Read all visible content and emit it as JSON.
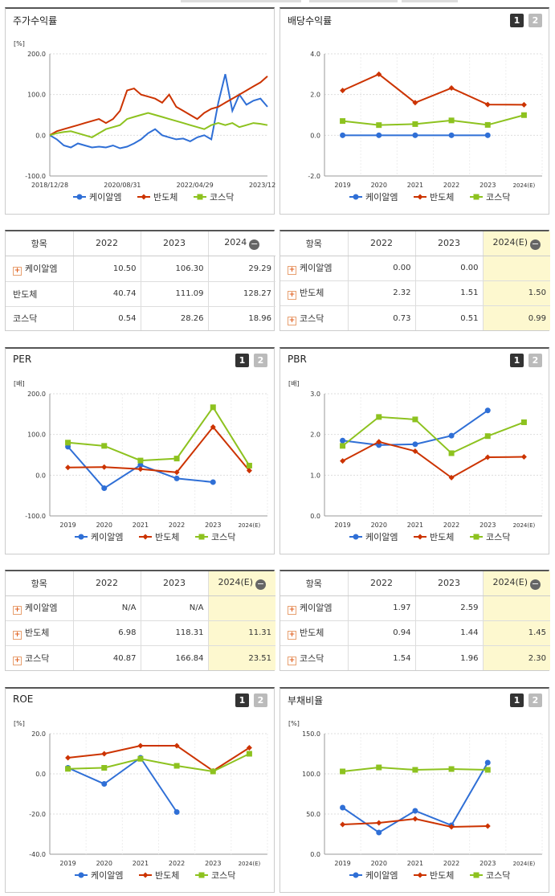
{
  "legend": [
    {
      "name": "케이알엠",
      "color": "#2f6fd6",
      "marker": "dot"
    },
    {
      "name": "반도체",
      "color": "#cc3300",
      "marker": "diamond"
    },
    {
      "name": "코스닥",
      "color": "#8dc21f",
      "marker": "square"
    }
  ],
  "controls": {
    "page1": "1",
    "page2": "2"
  },
  "stock_panel": {
    "title": "주가수익률",
    "unit": "[%]",
    "x_ticks": [
      "2018/12/28",
      "2020/08/31",
      "2022/04/29",
      "2023/12/28"
    ],
    "y_ticks": [
      "200.0",
      "100.0",
      "0.0",
      "-100.0"
    ]
  },
  "dividend_panel": {
    "title": "배당수익률",
    "unit": "",
    "x_ticks": [
      "2019",
      "2020",
      "2021",
      "2022",
      "2023",
      "2024(E)"
    ],
    "y_ticks": [
      "4.0",
      "2.0",
      "0.0",
      "-2.0"
    ]
  },
  "per_panel": {
    "title": "PER",
    "unit": "[배]",
    "x_ticks": [
      "2019",
      "2020",
      "2021",
      "2022",
      "2023",
      "2024(E)"
    ],
    "y_ticks": [
      "200.0",
      "100.0",
      "0.0",
      "-100.0"
    ]
  },
  "pbr_panel": {
    "title": "PBR",
    "unit": "[배]",
    "x_ticks": [
      "2019",
      "2020",
      "2021",
      "2022",
      "2023",
      "2024(E)"
    ],
    "y_ticks": [
      "3.0",
      "2.0",
      "1.0",
      "0.0"
    ]
  },
  "roe_panel": {
    "title": "ROE",
    "unit": "[%]",
    "x_ticks": [
      "2019",
      "2020",
      "2021",
      "2022",
      "2023",
      "2024(E)"
    ],
    "y_ticks": [
      "20.0",
      "0.0",
      "-20.0",
      "-40.0"
    ]
  },
  "debt_panel": {
    "title": "부채비율",
    "unit": "[%]",
    "x_ticks": [
      "2019",
      "2020",
      "2021",
      "2022",
      "2023",
      "2024(E)"
    ],
    "y_ticks": [
      "150.0",
      "100.0",
      "50.0",
      "0.0"
    ]
  },
  "tables": {
    "stock": {
      "headers": [
        "항목",
        "2022",
        "2023",
        "2024"
      ],
      "rows": [
        [
          "케이알엠",
          "10.50",
          "106.30",
          "29.29"
        ],
        [
          "반도체",
          "40.74",
          "111.09",
          "128.27"
        ],
        [
          "코스닥",
          "0.54",
          "28.26",
          "18.96"
        ]
      ]
    },
    "dividend": {
      "headers": [
        "항목",
        "2022",
        "2023",
        "2024(E)"
      ],
      "rows": [
        [
          "케이알엠",
          "0.00",
          "0.00",
          ""
        ],
        [
          "반도체",
          "2.32",
          "1.51",
          "1.50"
        ],
        [
          "코스닥",
          "0.73",
          "0.51",
          "0.99"
        ]
      ]
    },
    "per": {
      "headers": [
        "항목",
        "2022",
        "2023",
        "2024(E)"
      ],
      "rows": [
        [
          "케이알엠",
          "N/A",
          "N/A",
          ""
        ],
        [
          "반도체",
          "6.98",
          "118.31",
          "11.31"
        ],
        [
          "코스닥",
          "40.87",
          "166.84",
          "23.51"
        ]
      ]
    },
    "pbr": {
      "headers": [
        "항목",
        "2022",
        "2023",
        "2024(E)"
      ],
      "rows": [
        [
          "케이알엠",
          "1.97",
          "2.59",
          ""
        ],
        [
          "반도체",
          "0.94",
          "1.44",
          "1.45"
        ],
        [
          "코스닥",
          "1.54",
          "1.96",
          "2.30"
        ]
      ]
    }
  },
  "chart_data": [
    {
      "id": "stock",
      "type": "line",
      "title": "주가수익률",
      "ylabel": "[%]",
      "ylim": [
        -100,
        200
      ],
      "x_ticks": [
        "2018/12/28",
        "2020/08/31",
        "2022/04/29",
        "2023/12/28"
      ],
      "series": [
        {
          "name": "케이알엠",
          "values": [
            0,
            -10,
            -25,
            -30,
            -20,
            -25,
            -30,
            -28,
            -30,
            -25,
            -32,
            -28,
            -20,
            -10,
            5,
            15,
            0,
            -5,
            -10,
            -8,
            -15,
            -5,
            0,
            -10,
            80,
            150,
            60,
            100,
            75,
            85,
            90,
            70
          ]
        },
        {
          "name": "반도체",
          "values": [
            0,
            10,
            15,
            20,
            25,
            30,
            35,
            40,
            30,
            40,
            60,
            110,
            115,
            100,
            95,
            90,
            80,
            100,
            70,
            60,
            50,
            40,
            55,
            65,
            70,
            80,
            90,
            100,
            110,
            120,
            130,
            145
          ]
        },
        {
          "name": "코스닥",
          "values": [
            0,
            5,
            8,
            10,
            5,
            0,
            -5,
            5,
            15,
            20,
            25,
            40,
            45,
            50,
            55,
            50,
            45,
            40,
            35,
            30,
            25,
            20,
            15,
            25,
            30,
            25,
            30,
            20,
            25,
            30,
            28,
            25
          ]
        }
      ]
    },
    {
      "id": "dividend",
      "type": "line",
      "title": "배당수익률",
      "ylim": [
        -2,
        4
      ],
      "categories": [
        "2019",
        "2020",
        "2021",
        "2022",
        "2023",
        "2024(E)"
      ],
      "series": [
        {
          "name": "케이알엠",
          "values": [
            0,
            0,
            0,
            0,
            0,
            null
          ]
        },
        {
          "name": "반도체",
          "values": [
            2.2,
            3.0,
            1.6,
            2.32,
            1.51,
            1.5
          ]
        },
        {
          "name": "코스닥",
          "values": [
            0.7,
            0.5,
            0.55,
            0.73,
            0.51,
            0.99
          ]
        }
      ]
    },
    {
      "id": "per",
      "type": "line",
      "title": "PER",
      "ylabel": "[배]",
      "ylim": [
        -100,
        200
      ],
      "categories": [
        "2019",
        "2020",
        "2021",
        "2022",
        "2023",
        "2024(E)"
      ],
      "series": [
        {
          "name": "케이알엠",
          "values": [
            70,
            -32,
            25,
            -8,
            -17,
            null
          ]
        },
        {
          "name": "반도체",
          "values": [
            19,
            20,
            15,
            6.98,
            118.31,
            11.31
          ]
        },
        {
          "name": "코스닥",
          "values": [
            80,
            72,
            36,
            40.87,
            166.84,
            23.51
          ]
        }
      ]
    },
    {
      "id": "pbr",
      "type": "line",
      "title": "PBR",
      "ylabel": "[배]",
      "ylim": [
        0,
        3
      ],
      "categories": [
        "2019",
        "2020",
        "2021",
        "2022",
        "2023",
        "2024(E)"
      ],
      "series": [
        {
          "name": "케이알엠",
          "values": [
            1.85,
            1.74,
            1.76,
            1.97,
            2.59,
            null
          ]
        },
        {
          "name": "반도체",
          "values": [
            1.35,
            1.82,
            1.59,
            0.94,
            1.44,
            1.45
          ]
        },
        {
          "name": "코스닥",
          "values": [
            1.72,
            2.43,
            2.37,
            1.54,
            1.96,
            2.3
          ]
        }
      ]
    },
    {
      "id": "roe",
      "type": "line",
      "title": "ROE",
      "ylabel": "[%]",
      "ylim": [
        -40,
        20
      ],
      "categories": [
        "2019",
        "2020",
        "2021",
        "2022",
        "2023",
        "2024(E)"
      ],
      "series": [
        {
          "name": "케이알엠",
          "values": [
            3,
            -5,
            8,
            -19,
            null,
            null
          ]
        },
        {
          "name": "반도체",
          "values": [
            8,
            10,
            14,
            14,
            1.5,
            13
          ]
        },
        {
          "name": "코스닥",
          "values": [
            2.5,
            3,
            7.5,
            4,
            1.2,
            10
          ]
        }
      ]
    },
    {
      "id": "debt",
      "type": "line",
      "title": "부채비율",
      "ylabel": "[%]",
      "ylim": [
        0,
        150
      ],
      "categories": [
        "2019",
        "2020",
        "2021",
        "2022",
        "2023",
        "2024(E)"
      ],
      "series": [
        {
          "name": "케이알엠",
          "values": [
            58,
            27,
            54,
            36,
            114,
            null
          ]
        },
        {
          "name": "반도체",
          "values": [
            37,
            39,
            44,
            34,
            35,
            null
          ]
        },
        {
          "name": "코스닥",
          "values": [
            103,
            108,
            105,
            106,
            105,
            null
          ]
        }
      ]
    }
  ]
}
